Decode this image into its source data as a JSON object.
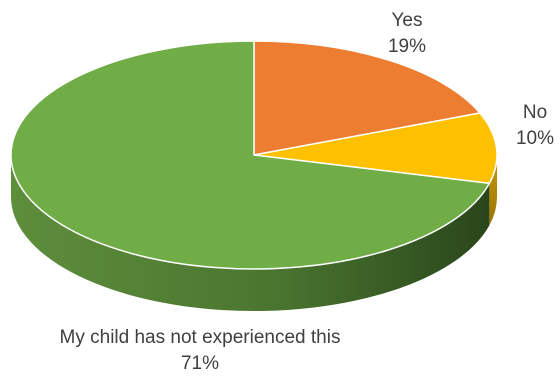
{
  "chart_data": {
    "type": "pie",
    "style": "3d",
    "slices": [
      {
        "label": "Yes",
        "value": 19,
        "value_label": "19%",
        "color": "#ED7D31"
      },
      {
        "label": "No",
        "value": 10,
        "value_label": "10%",
        "color": "#FFC000"
      },
      {
        "label": "My child has not experienced this",
        "value": 71,
        "value_label": "71%",
        "color": "#70AD47"
      }
    ]
  }
}
